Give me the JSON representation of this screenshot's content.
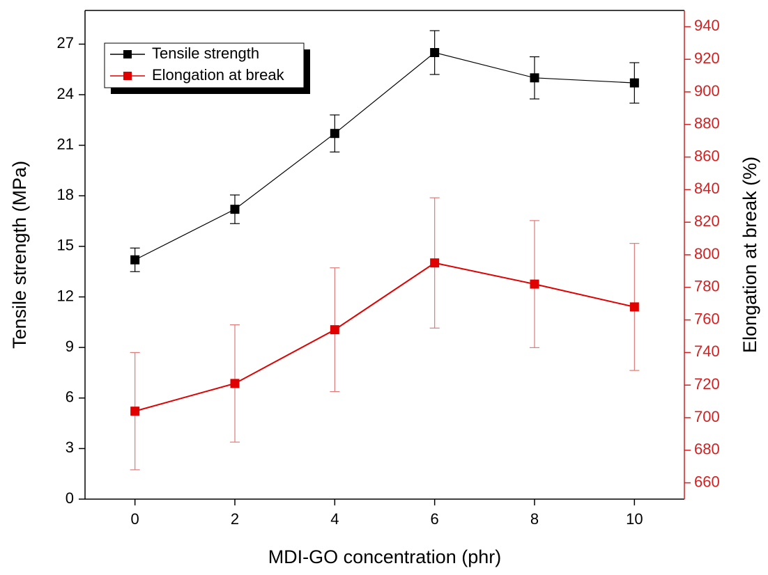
{
  "chart_data": {
    "type": "line",
    "x_label": "MDI-GO concentration (phr)",
    "y_label": "Tensile strength (MPa)",
    "y2_label": "Elongation at break (%)",
    "x": [
      0,
      2,
      4,
      6,
      8,
      10
    ],
    "xlim": [
      -1,
      11
    ],
    "xticks": [
      0,
      2,
      4,
      6,
      8,
      10
    ],
    "ylim": [
      0,
      29
    ],
    "yticks": [
      0,
      3,
      6,
      9,
      12,
      15,
      18,
      21,
      24,
      27
    ],
    "y2lim": [
      650,
      950
    ],
    "y2ticks": [
      660,
      680,
      700,
      720,
      740,
      760,
      780,
      800,
      820,
      840,
      860,
      880,
      900,
      920,
      940
    ],
    "y2_color": "#d42020",
    "legend": "upper left",
    "series": [
      {
        "name": "Tensile strength",
        "color": "#000000",
        "error_color": "#000000",
        "values": [
          14.2,
          17.2,
          21.7,
          26.5,
          25.0,
          24.7
        ],
        "errors": [
          0.7,
          0.85,
          1.1,
          1.3,
          1.25,
          1.2
        ]
      },
      {
        "name": "Elongation at break",
        "color": "#e00000",
        "error_color": "#e07a7a",
        "axis": "y2",
        "values": [
          704,
          721,
          754,
          795,
          782,
          768
        ],
        "errors": [
          36,
          36,
          38,
          40,
          39,
          39
        ]
      }
    ]
  }
}
